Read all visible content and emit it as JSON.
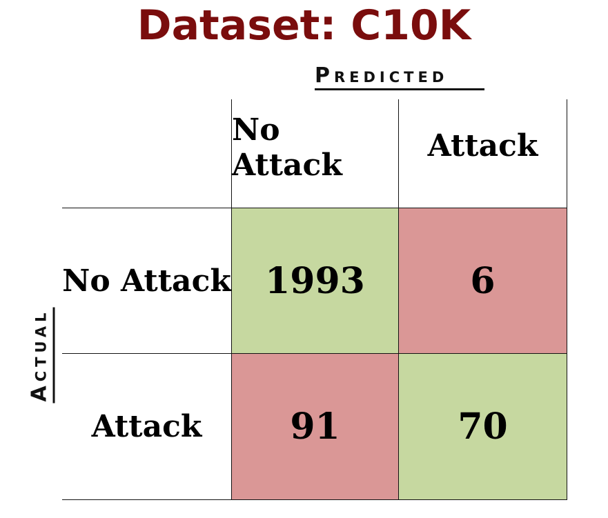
{
  "title": "Dataset: C10K",
  "predicted_label": "Predicted",
  "actual_label": "Actual",
  "colors": {
    "title": "#7a0d0d",
    "correct": "#c6d8a0",
    "incorrect": "#da9796"
  },
  "chart_data": {
    "type": "heatmap",
    "title": "Dataset: C10K",
    "xlabel": "Predicted",
    "ylabel": "Actual",
    "columns": [
      "No Attack",
      "Attack"
    ],
    "rows": [
      "No Attack",
      "Attack"
    ],
    "values": [
      [
        1993,
        6
      ],
      [
        91,
        70
      ]
    ]
  }
}
